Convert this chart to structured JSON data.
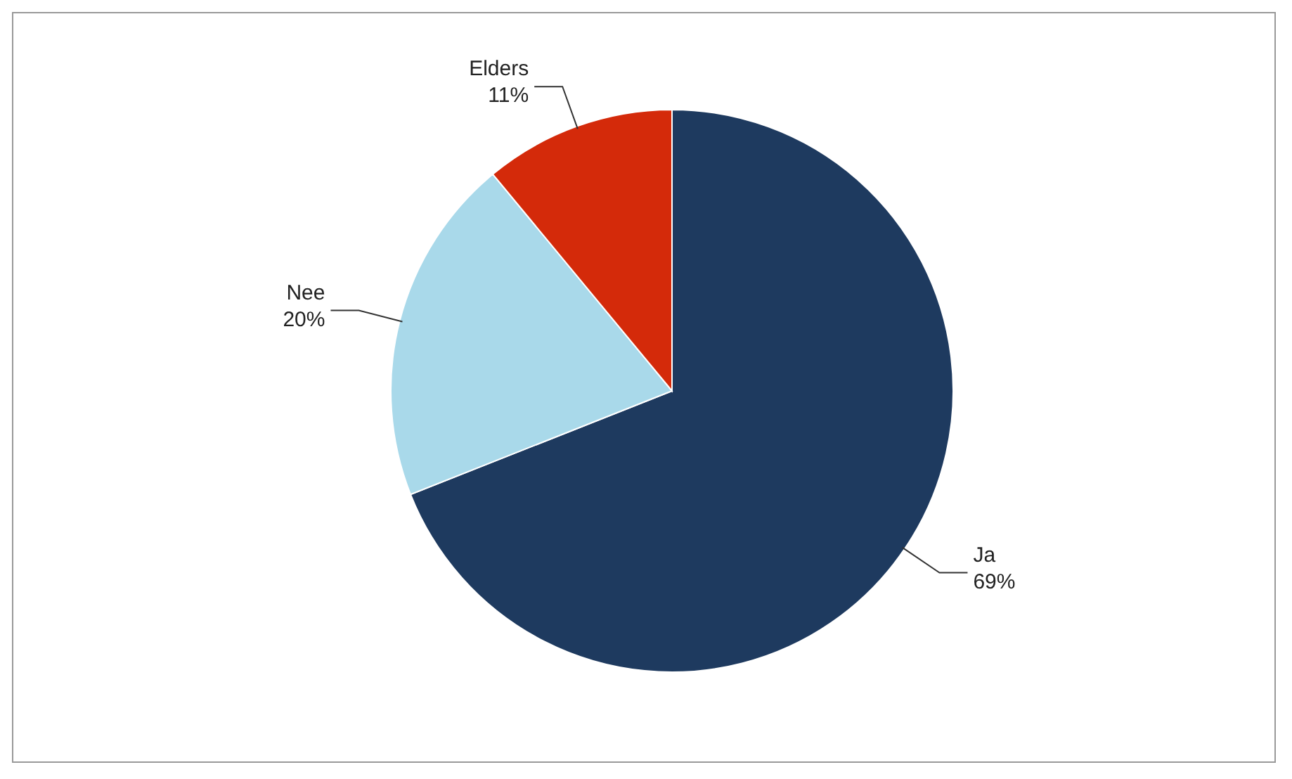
{
  "chart_data": {
    "type": "pie",
    "categories": [
      "Ja",
      "Nee",
      "Elders"
    ],
    "values": [
      69,
      20,
      11
    ],
    "colors": [
      "#1e3a5f",
      "#a9d9ea",
      "#d42a0a"
    ],
    "value_labels": [
      "69%",
      "20%",
      "11%"
    ],
    "legend": false
  }
}
